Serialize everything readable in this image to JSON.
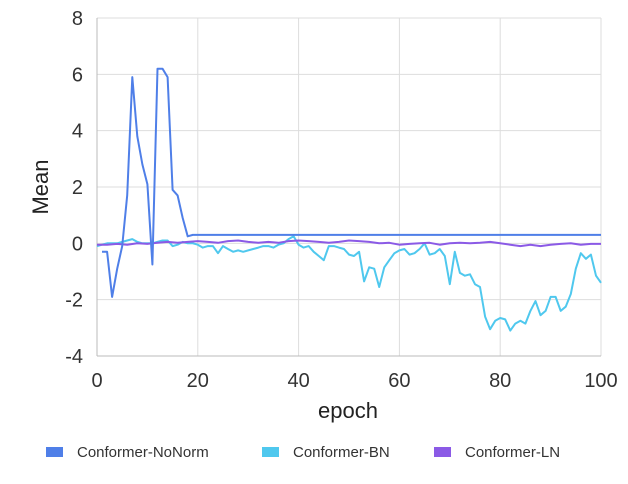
{
  "chart_data": {
    "type": "line",
    "title": "",
    "xlabel": "epoch",
    "ylabel": "Mean",
    "xlim": [
      0,
      100
    ],
    "ylim": [
      -4,
      8
    ],
    "xticks": [
      0,
      20,
      40,
      60,
      80,
      100
    ],
    "yticks": [
      -4,
      -2,
      0,
      2,
      4,
      6,
      8
    ],
    "grid": true,
    "legend_position": "bottom",
    "series": [
      {
        "name": "Conformer-NoNorm",
        "color": "#4f7fe8",
        "x": [
          1,
          2,
          3,
          4,
          5,
          6,
          7,
          8,
          9,
          10,
          11,
          12,
          13,
          14,
          15,
          16,
          17,
          18,
          19,
          20,
          30,
          40,
          50,
          60,
          70,
          80,
          90,
          100
        ],
        "y": [
          -0.3,
          -0.3,
          -1.9,
          -0.9,
          -0.1,
          1.7,
          5.9,
          3.8,
          2.8,
          2.1,
          -0.75,
          6.2,
          6.2,
          5.9,
          1.9,
          1.7,
          0.9,
          0.25,
          0.3,
          0.3,
          0.3,
          0.3,
          0.3,
          0.3,
          0.3,
          0.3,
          0.3,
          0.3
        ]
      },
      {
        "name": "Conformer-BN",
        "color": "#4fc8ee",
        "x": [
          0,
          1,
          2,
          3,
          4,
          5,
          6,
          7,
          8,
          9,
          10,
          11,
          12,
          13,
          14,
          15,
          16,
          17,
          18,
          19,
          20,
          21,
          22,
          23,
          24,
          25,
          26,
          27,
          28,
          29,
          30,
          31,
          32,
          33,
          34,
          35,
          36,
          37,
          38,
          39,
          40,
          41,
          42,
          43,
          44,
          45,
          46,
          47,
          48,
          49,
          50,
          51,
          52,
          53,
          54,
          55,
          56,
          57,
          58,
          59,
          60,
          61,
          62,
          63,
          64,
          65,
          66,
          67,
          68,
          69,
          70,
          71,
          72,
          73,
          74,
          75,
          76,
          77,
          78,
          79,
          80,
          81,
          82,
          83,
          84,
          85,
          86,
          87,
          88,
          89,
          90,
          91,
          92,
          93,
          94,
          95,
          96,
          97,
          98,
          99,
          100
        ],
        "y": [
          -0.1,
          -0.05,
          0,
          0,
          0,
          0.05,
          0.1,
          0.15,
          0.05,
          0,
          0,
          0,
          0.05,
          0.1,
          0.1,
          -0.1,
          -0.05,
          0.05,
          0,
          0,
          -0.05,
          -0.15,
          -0.1,
          -0.1,
          -0.35,
          -0.1,
          -0.2,
          -0.3,
          -0.25,
          -0.3,
          -0.25,
          -0.2,
          -0.15,
          -0.1,
          -0.1,
          -0.15,
          -0.05,
          0,
          0.15,
          0.25,
          -0.05,
          -0.15,
          -0.1,
          -0.3,
          -0.45,
          -0.6,
          -0.1,
          -0.1,
          -0.15,
          -0.2,
          -0.4,
          -0.45,
          -0.3,
          -1.35,
          -0.85,
          -0.9,
          -1.55,
          -0.85,
          -0.6,
          -0.35,
          -0.25,
          -0.2,
          -0.4,
          -0.35,
          -0.2,
          0,
          -0.4,
          -0.35,
          -0.2,
          -0.45,
          -1.45,
          -0.3,
          -1.05,
          -1.15,
          -1.1,
          -1.45,
          -1.55,
          -2.6,
          -3.05,
          -2.75,
          -2.65,
          -2.7,
          -3.1,
          -2.85,
          -2.75,
          -2.85,
          -2.4,
          -2.05,
          -2.55,
          -2.4,
          -1.9,
          -1.9,
          -2.4,
          -2.25,
          -1.8,
          -0.9,
          -0.35,
          -0.55,
          -0.4,
          -1.15,
          -1.4
        ]
      },
      {
        "name": "Conformer-LN",
        "color": "#8b5ae6",
        "x": [
          0,
          2,
          4,
          6,
          8,
          10,
          12,
          14,
          16,
          18,
          20,
          22,
          24,
          26,
          28,
          30,
          32,
          34,
          36,
          38,
          40,
          42,
          44,
          46,
          48,
          50,
          52,
          54,
          56,
          58,
          60,
          62,
          64,
          66,
          68,
          70,
          72,
          74,
          76,
          78,
          80,
          82,
          84,
          86,
          88,
          90,
          92,
          94,
          96,
          98,
          100
        ],
        "y": [
          -0.05,
          -0.05,
          -0.02,
          -0.05,
          0,
          -0.02,
          0.02,
          0.05,
          0.02,
          0.05,
          0.08,
          0.05,
          0.02,
          0.08,
          0.1,
          0.05,
          0.02,
          0.05,
          0.02,
          0.08,
          0.1,
          0.08,
          0.05,
          0.02,
          0.05,
          0.1,
          0.08,
          0.05,
          0,
          0.02,
          -0.05,
          -0.02,
          0,
          0.02,
          -0.05,
          0,
          0.02,
          0,
          0.02,
          0.05,
          0,
          -0.05,
          -0.1,
          -0.05,
          -0.1,
          -0.05,
          -0.02,
          0,
          -0.05,
          -0.02,
          -0.02
        ]
      }
    ]
  }
}
